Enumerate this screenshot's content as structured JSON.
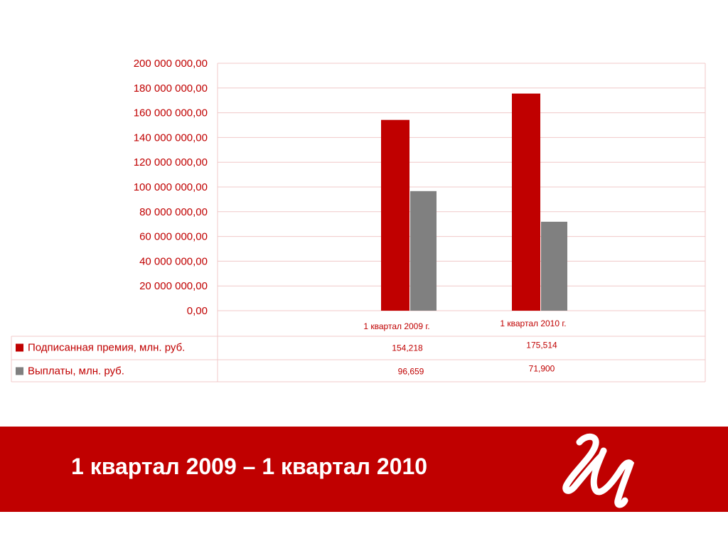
{
  "chart_data": {
    "type": "bar",
    "categories": [
      "1 квартал 2009 г.",
      "1 квартал 2010 г."
    ],
    "series": [
      {
        "name": "Подписанная премия, млн. руб.",
        "values": [
          154218000,
          175514000
        ],
        "labels": [
          "154,218",
          "175,514"
        ],
        "color": "#c00000"
      },
      {
        "name": "Выплаты, млн. руб.",
        "values": [
          96659000,
          71900000
        ],
        "labels": [
          "96,659",
          "71,900"
        ],
        "color": "#808080"
      }
    ],
    "ylim": [
      0,
      200000000
    ],
    "yticks": [
      "0,00",
      "20 000 000,00",
      "40 000 000,00",
      "60 000 000,00",
      "80 000 000,00",
      "100 000 000,00",
      "120 000 000,00",
      "140 000 000,00",
      "160 000 000,00",
      "180 000 000,00",
      "200 000 000,00"
    ],
    "grid": true,
    "legend": "data-table"
  },
  "banner": {
    "title": "1 квартал 2009 – 1 квартал 2010",
    "color": "#c00000",
    "logo_icon": "company-monogram-logo"
  }
}
